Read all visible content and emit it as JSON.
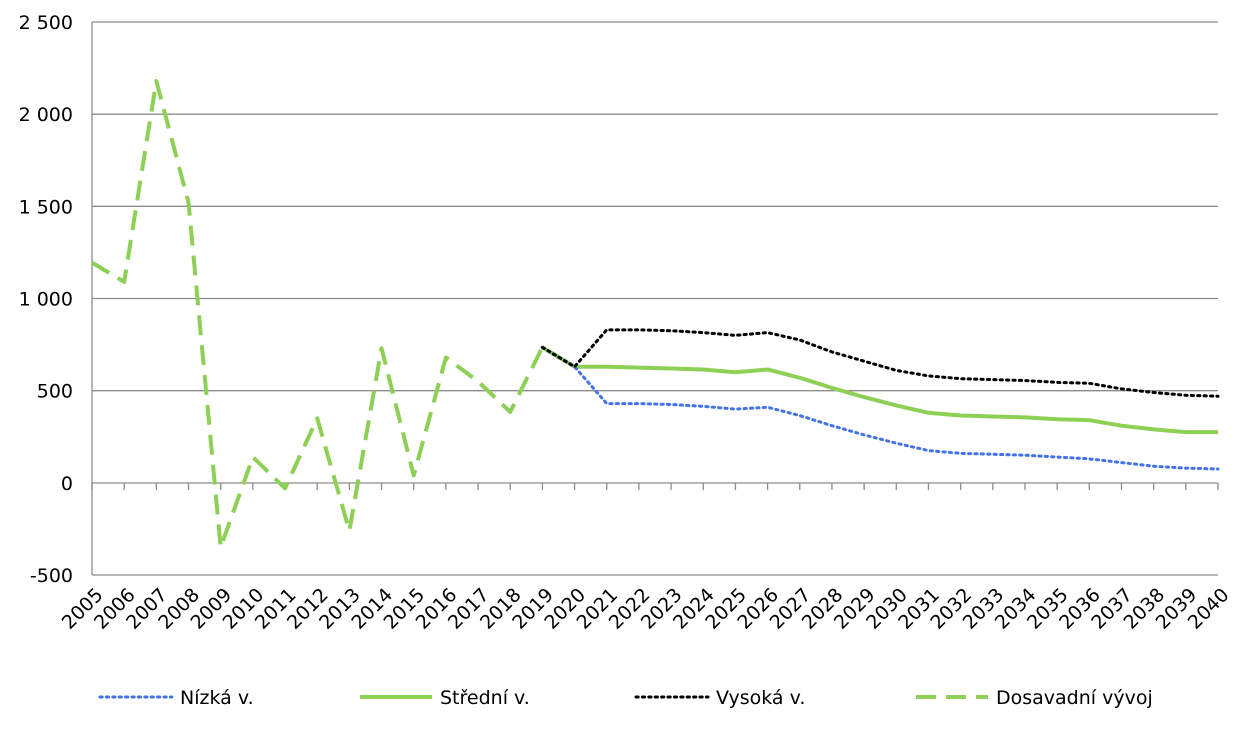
{
  "chart_data": {
    "type": "line",
    "title": "",
    "xlabel": "",
    "ylabel": "",
    "ylim": [
      -500,
      2500
    ],
    "y_ticks": [
      {
        "value": -500,
        "label": "-500"
      },
      {
        "value": 0,
        "label": "0"
      },
      {
        "value": 500,
        "label": "500"
      },
      {
        "value": 1000,
        "label": "1 000"
      },
      {
        "value": 1500,
        "label": "1 500"
      },
      {
        "value": 2000,
        "label": "2 000"
      },
      {
        "value": 2500,
        "label": "2 500"
      }
    ],
    "categories": [
      "2005",
      "2006",
      "2007",
      "2008",
      "2009",
      "2010",
      "2011",
      "2012",
      "2013",
      "2014",
      "2015",
      "2016",
      "2017",
      "2018",
      "2019",
      "2020",
      "2021",
      "2022",
      "2023",
      "2024",
      "2025",
      "2026",
      "2027",
      "2028",
      "2029",
      "2030",
      "2031",
      "2032",
      "2033",
      "2034",
      "2035",
      "2036",
      "2037",
      "2038",
      "2039",
      "2040"
    ],
    "grid": true,
    "legend_position": "bottom",
    "series": [
      {
        "name": "Nízká v.",
        "color": "#4472e8",
        "style": "dotted",
        "values": [
          null,
          null,
          null,
          null,
          null,
          null,
          null,
          null,
          null,
          null,
          null,
          null,
          null,
          null,
          735,
          630,
          430,
          430,
          425,
          415,
          400,
          410,
          365,
          310,
          260,
          215,
          175,
          160,
          155,
          150,
          140,
          130,
          110,
          90,
          80,
          75
        ]
      },
      {
        "name": "Střední v.",
        "color": "#8ed056",
        "style": "solid",
        "values": [
          null,
          null,
          null,
          null,
          null,
          null,
          null,
          null,
          null,
          null,
          null,
          null,
          null,
          null,
          735,
          630,
          630,
          625,
          620,
          615,
          600,
          615,
          570,
          515,
          465,
          420,
          380,
          365,
          360,
          355,
          345,
          340,
          310,
          290,
          275,
          275
        ]
      },
      {
        "name": "Vysoká v.",
        "color": "#000000",
        "style": "dotted",
        "values": [
          null,
          null,
          null,
          null,
          null,
          null,
          null,
          null,
          null,
          null,
          null,
          null,
          null,
          null,
          735,
          630,
          830,
          830,
          825,
          815,
          800,
          815,
          775,
          710,
          660,
          610,
          580,
          565,
          560,
          555,
          545,
          540,
          510,
          490,
          475,
          470
        ]
      },
      {
        "name": "Dosavadní vývoj",
        "color": "#8ed056",
        "style": "dashed",
        "values": [
          1195,
          1090,
          2180,
          1520,
          -350,
          140,
          -30,
          350,
          -260,
          730,
          40,
          680,
          550,
          385,
          735,
          630,
          null,
          null,
          null,
          null,
          null,
          null,
          null,
          null,
          null,
          null,
          null,
          null,
          null,
          null,
          null,
          null,
          null,
          null,
          null,
          null
        ]
      }
    ]
  }
}
